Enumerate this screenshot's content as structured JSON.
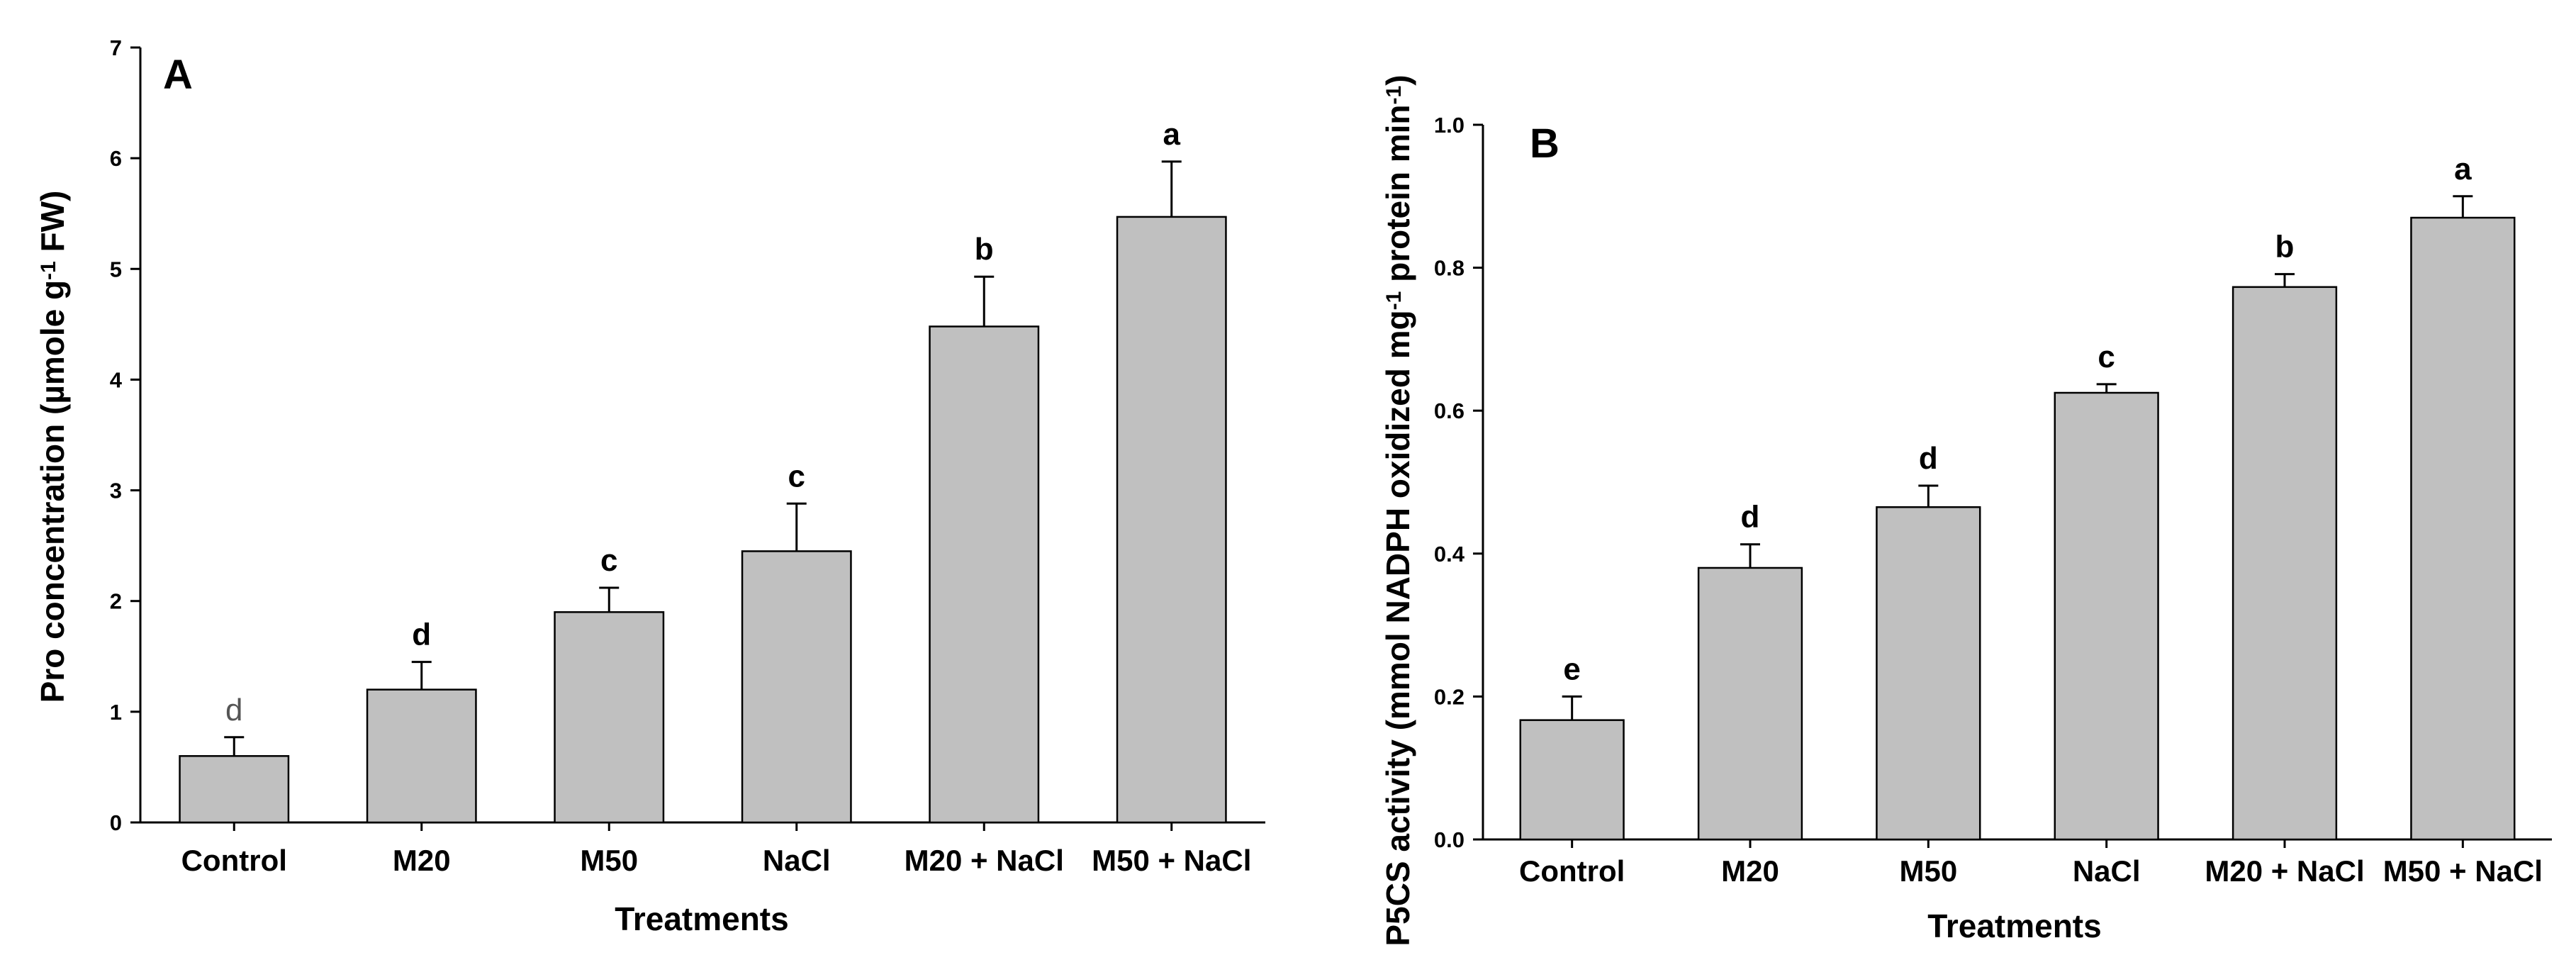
{
  "chart_data": [
    {
      "type": "bar",
      "panel_label": "A",
      "categories": [
        "Control",
        "M20",
        "M50",
        "NaCl",
        "M20 + NaCl",
        "M50 + NaCl"
      ],
      "values": [
        0.6,
        1.2,
        1.9,
        2.45,
        4.48,
        5.47
      ],
      "errors": [
        0.17,
        0.25,
        0.22,
        0.43,
        0.45,
        0.5
      ],
      "significance_letters": [
        "d",
        "d",
        "c",
        "c",
        "b",
        "a"
      ],
      "xlabel": "Treatments",
      "ylabel_parts": [
        "Pro concentration (µmole g",
        "-1",
        " FW)"
      ],
      "ylim": [
        0,
        7
      ],
      "yticks": [
        0,
        1,
        2,
        3,
        4,
        5,
        6,
        7
      ],
      "ytick_labels": [
        "0",
        "1",
        "2",
        "3",
        "4",
        "5",
        "6",
        "7"
      ],
      "bar_color": "#c0c0c0"
    },
    {
      "type": "bar",
      "panel_label": "B",
      "categories": [
        "Control",
        "M20",
        "M50",
        "NaCl",
        "M20 + NaCl",
        "M50 + NaCl"
      ],
      "values": [
        0.167,
        0.38,
        0.465,
        0.625,
        0.773,
        0.87
      ],
      "errors": [
        0.033,
        0.033,
        0.03,
        0.012,
        0.018,
        0.03
      ],
      "significance_letters": [
        "e",
        "d",
        "d",
        "c",
        "b",
        "a"
      ],
      "xlabel": "Treatments",
      "ylabel_parts": [
        "P5CS activity (mmol NADPH oxidized mg",
        "-1",
        " protein min",
        "-1",
        ")"
      ],
      "ylim": [
        0,
        1.0
      ],
      "yticks": [
        0,
        0.2,
        0.4,
        0.6,
        0.8,
        1.0
      ],
      "ytick_labels": [
        "0.0",
        "0.2",
        "0.4",
        "0.6",
        "0.8",
        "1.0"
      ],
      "bar_color": "#c0c0c0"
    }
  ]
}
